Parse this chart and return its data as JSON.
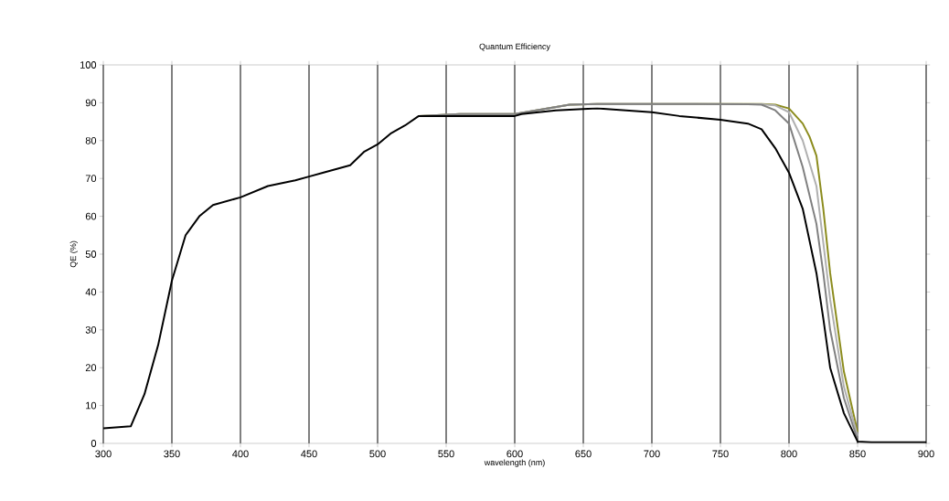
{
  "chart_data": {
    "type": "line",
    "title": "Quantum Efficiency",
    "xlabel": "wavelength (nm)",
    "ylabel": "QE (%)",
    "xlim": [
      300,
      900
    ],
    "ylim": [
      0,
      100
    ],
    "xticks": [
      300,
      350,
      400,
      450,
      500,
      550,
      600,
      650,
      700,
      750,
      800,
      850,
      900
    ],
    "yticks": [
      0,
      10,
      20,
      30,
      40,
      50,
      60,
      70,
      80,
      90,
      100
    ],
    "grid": "x",
    "marker": "none",
    "line_style": "solid",
    "series": [
      {
        "color": "#8c8c1e",
        "x": [
          530,
          560,
          600,
          640,
          660,
          700,
          780,
          790,
          800,
          810,
          815,
          820,
          825,
          830,
          840,
          850
        ],
        "values": [
          86.5,
          87,
          87,
          89.5,
          89.7,
          89.7,
          89.7,
          89.5,
          88.5,
          84.5,
          81,
          76,
          62,
          45,
          19,
          3
        ]
      },
      {
        "color": "#b0b0b0",
        "x": [
          530,
          560,
          600,
          640,
          660,
          700,
          780,
          790,
          800,
          810,
          820,
          830,
          840,
          850
        ],
        "values": [
          86.5,
          87,
          87,
          89.5,
          89.7,
          89.7,
          89.6,
          89.3,
          87.5,
          80,
          68,
          38,
          15,
          2
        ]
      },
      {
        "color": "#808080",
        "x": [
          530,
          560,
          600,
          640,
          660,
          700,
          770,
          780,
          790,
          800,
          810,
          820,
          825,
          830,
          840,
          850
        ],
        "values": [
          86.5,
          87,
          87,
          89.5,
          89.7,
          89.7,
          89.6,
          89.5,
          88,
          84.5,
          73,
          58,
          45,
          30,
          12,
          1
        ]
      },
      {
        "color": "#000000",
        "x": [
          300,
          320,
          330,
          340,
          350,
          360,
          370,
          380,
          400,
          420,
          440,
          450,
          460,
          480,
          490,
          500,
          510,
          520,
          530,
          600,
          605,
          630,
          660,
          700,
          720,
          750,
          770,
          780,
          790,
          800,
          810,
          820,
          825,
          830,
          840,
          850,
          860,
          900
        ],
        "values": [
          4,
          4.5,
          13,
          26,
          43,
          55,
          60,
          63,
          65,
          68,
          69.5,
          70.5,
          71.5,
          73.5,
          77,
          79,
          82,
          84,
          86.5,
          86.5,
          87,
          88,
          88.5,
          87.5,
          86.5,
          85.5,
          84.5,
          83,
          78,
          71.5,
          62,
          45,
          33,
          20,
          8,
          0.5,
          0.3,
          0.3
        ]
      }
    ]
  }
}
